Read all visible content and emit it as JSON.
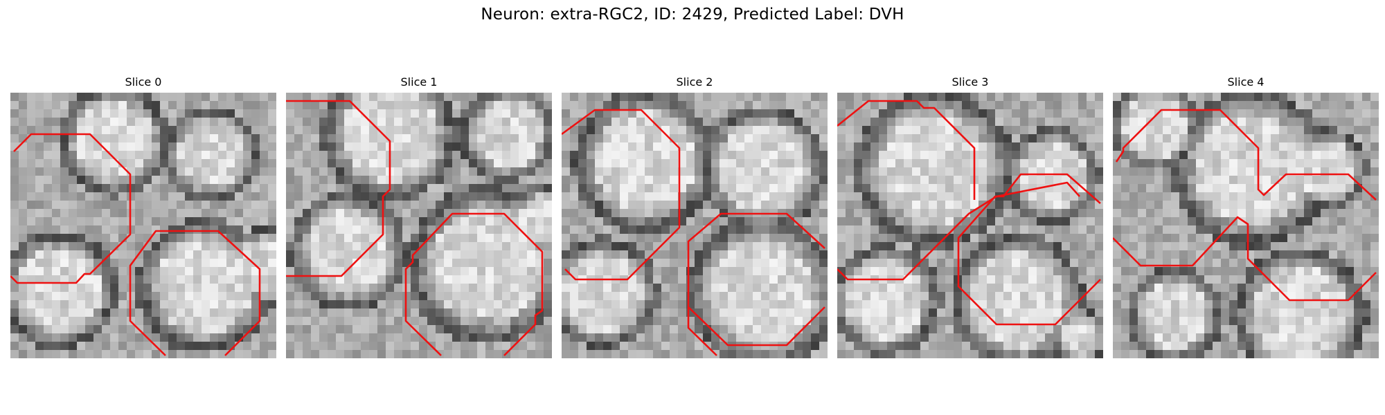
{
  "figure": {
    "title": "Neuron: extra-RGC2, ID: 2429, Predicted Label: DVH"
  },
  "overlay_color": "#ee1111",
  "panels": [
    {
      "title": "Slice 0",
      "image": "grayscale-em-slice-with-red-contours"
    },
    {
      "title": "Slice 1",
      "image": "grayscale-em-slice-with-red-contours"
    },
    {
      "title": "Slice 2",
      "image": "grayscale-em-slice-with-red-contours"
    },
    {
      "title": "Slice 3",
      "image": "grayscale-em-slice-with-red-contours"
    },
    {
      "title": "Slice 4",
      "image": "grayscale-em-slice-with-red-contours"
    }
  ]
}
